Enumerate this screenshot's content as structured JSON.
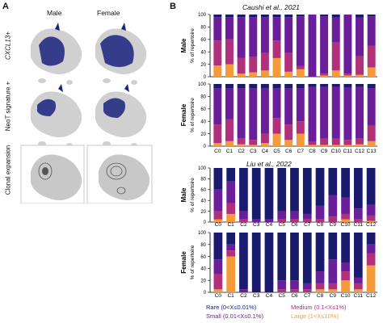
{
  "panel_a": {
    "letter": "A",
    "col_male": "Male",
    "col_female": "Female",
    "row_labels": [
      "CXCL13+",
      "NeoT signature +",
      "Clonal expansion"
    ]
  },
  "panel_b": {
    "letter": "B",
    "ylabel": "% of repertoire",
    "sex_labels": [
      "Male",
      "Female"
    ],
    "yticks": [
      "0",
      "20",
      "40",
      "60",
      "80",
      "100"
    ],
    "legend": {
      "rare": "Rare (0<X≤0.01%)",
      "medium": "Medium (0.1<X≤1%)",
      "small": "Small (0.01<X≤0.1%)",
      "large": "Large (1<X≤10%)"
    }
  },
  "colors": {
    "rare": "#1a1a6e",
    "small": "#6a1e9a",
    "medium": "#b0307a",
    "large": "#f39a3a",
    "hyper": "#000033",
    "umap_grey": "#cfcfcf",
    "umap_blue": "#1a237e"
  },
  "chart_data": [
    {
      "type": "bar",
      "title": "Caushi et al., 2021",
      "subtitle": "Male",
      "ylabel": "% of repertoire",
      "ylim": [
        0,
        100
      ],
      "categories": [
        "C0",
        "C1",
        "C2",
        "C3",
        "C4",
        "C5",
        "C6",
        "C7",
        "C8",
        "C9",
        "C10",
        "C11",
        "C12",
        "C13"
      ],
      "series": [
        {
          "name": "Large",
          "values": [
            18,
            20,
            5,
            7,
            10,
            30,
            8,
            12,
            0,
            2,
            10,
            2,
            3,
            15
          ]
        },
        {
          "name": "Medium",
          "values": [
            40,
            40,
            25,
            25,
            28,
            28,
            30,
            5,
            0,
            3,
            45,
            3,
            30,
            35
          ]
        },
        {
          "name": "Small",
          "values": [
            38,
            36,
            66,
            64,
            58,
            38,
            58,
            80,
            100,
            92,
            40,
            95,
            62,
            47
          ]
        },
        {
          "name": "Rare",
          "values": [
            4,
            4,
            4,
            4,
            4,
            4,
            4,
            3,
            0,
            3,
            5,
            0,
            5,
            3
          ]
        }
      ]
    },
    {
      "type": "bar",
      "title": "",
      "subtitle": "Female",
      "ylabel": "% of repertoire",
      "ylim": [
        0,
        100
      ],
      "categories": [
        "C0",
        "C1",
        "C2",
        "C3",
        "C4",
        "C5",
        "C6",
        "C7",
        "C8",
        "C9",
        "C10",
        "C11",
        "C12",
        "C13"
      ],
      "series": [
        {
          "name": "Large",
          "values": [
            5,
            8,
            3,
            2,
            5,
            20,
            10,
            20,
            2,
            2,
            2,
            2,
            3,
            8
          ]
        },
        {
          "name": "Medium",
          "values": [
            30,
            35,
            10,
            8,
            15,
            25,
            25,
            20,
            5,
            10,
            10,
            8,
            10,
            25
          ]
        },
        {
          "name": "Small",
          "values": [
            58,
            50,
            80,
            83,
            73,
            48,
            58,
            53,
            88,
            83,
            83,
            84,
            82,
            60
          ]
        },
        {
          "name": "Rare",
          "values": [
            7,
            7,
            7,
            7,
            7,
            7,
            7,
            7,
            5,
            5,
            5,
            6,
            5,
            7
          ]
        }
      ]
    },
    {
      "type": "bar",
      "title": "Liu et al., 2022",
      "subtitle": "Male",
      "ylabel": "% of repertoire",
      "ylim": [
        0,
        100
      ],
      "categories": [
        "C0",
        "C1",
        "C2",
        "C3",
        "C4",
        "C5",
        "C6",
        "C7",
        "C8",
        "C9",
        "C10",
        "C11",
        "C12"
      ],
      "series": [
        {
          "name": "Large",
          "values": [
            5,
            15,
            0,
            0,
            0,
            0,
            0,
            0,
            0,
            0,
            5,
            0,
            2
          ]
        },
        {
          "name": "Medium",
          "values": [
            15,
            20,
            5,
            0,
            0,
            5,
            5,
            5,
            5,
            10,
            10,
            5,
            10
          ]
        },
        {
          "name": "Small",
          "values": [
            40,
            40,
            15,
            5,
            5,
            15,
            15,
            10,
            25,
            40,
            30,
            20,
            20
          ]
        },
        {
          "name": "Rare",
          "values": [
            40,
            25,
            80,
            95,
            95,
            80,
            80,
            85,
            70,
            50,
            55,
            75,
            68
          ]
        }
      ]
    },
    {
      "type": "bar",
      "title": "",
      "subtitle": "Female",
      "ylabel": "% of repertoire",
      "ylim": [
        0,
        100
      ],
      "categories": [
        "C0",
        "C1",
        "C2",
        "C3",
        "C4",
        "C5",
        "C6",
        "C7",
        "C8",
        "C9",
        "C10",
        "C11",
        "C12"
      ],
      "series": [
        {
          "name": "Large",
          "values": [
            5,
            60,
            0,
            0,
            0,
            0,
            0,
            0,
            5,
            5,
            20,
            5,
            45
          ]
        },
        {
          "name": "Medium",
          "values": [
            25,
            10,
            0,
            0,
            0,
            5,
            5,
            5,
            10,
            10,
            15,
            10,
            20
          ]
        },
        {
          "name": "Small",
          "values": [
            25,
            10,
            5,
            0,
            0,
            15,
            15,
            10,
            20,
            40,
            15,
            10,
            15
          ]
        },
        {
          "name": "Rare",
          "values": [
            45,
            20,
            95,
            100,
            100,
            80,
            80,
            85,
            65,
            45,
            50,
            75,
            20
          ]
        }
      ]
    }
  ]
}
